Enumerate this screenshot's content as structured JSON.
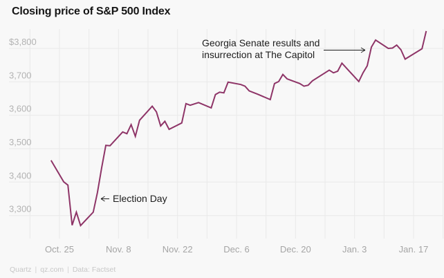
{
  "title": "Closing price of S&P 500 Index",
  "footer": {
    "brand": "Quartz",
    "site": "qz.com",
    "source": "Data: Factset",
    "separator": "|"
  },
  "annotations": {
    "election": {
      "label": "Election Day"
    },
    "georgia": {
      "line1": "Georgia Senate results and",
      "line2": "insurrection at The Capitol"
    }
  },
  "chart_data": {
    "type": "line",
    "title": "Closing price of S&P 500 Index",
    "line_color": "#8e3467",
    "grid": true,
    "legend_position": "none",
    "ylim": [
      3230,
      3860
    ],
    "x_range": [
      "2020-10-18",
      "2021-01-24"
    ],
    "y_axis": {
      "tick_labels": [
        "$3,800",
        "3,700",
        "3,600",
        "3,500",
        "3,400",
        "3,300"
      ],
      "tick_values": [
        3800,
        3700,
        3600,
        3500,
        3400,
        3300
      ]
    },
    "x_axis": {
      "tick_labels": [
        "Oct. 25",
        "Nov. 8",
        "Nov. 22",
        "Dec. 6",
        "Dec. 20",
        "Jan. 3",
        "Jan. 17"
      ],
      "tick_dates": [
        "2020-10-25",
        "2020-11-08",
        "2020-11-22",
        "2020-12-06",
        "2020-12-20",
        "2021-01-03",
        "2021-01-17"
      ],
      "minor_gridline_interval_days": 7
    },
    "series": [
      {
        "name": "S&P 500 closing price",
        "dates": [
          "2020-10-23",
          "2020-10-26",
          "2020-10-27",
          "2020-10-28",
          "2020-10-29",
          "2020-10-30",
          "2020-11-02",
          "2020-11-03",
          "2020-11-04",
          "2020-11-05",
          "2020-11-06",
          "2020-11-09",
          "2020-11-10",
          "2020-11-11",
          "2020-11-12",
          "2020-11-13",
          "2020-11-16",
          "2020-11-17",
          "2020-11-18",
          "2020-11-19",
          "2020-11-20",
          "2020-11-23",
          "2020-11-24",
          "2020-11-25",
          "2020-11-27",
          "2020-11-30",
          "2020-12-01",
          "2020-12-02",
          "2020-12-03",
          "2020-12-04",
          "2020-12-07",
          "2020-12-08",
          "2020-12-09",
          "2020-12-10",
          "2020-12-11",
          "2020-12-14",
          "2020-12-15",
          "2020-12-16",
          "2020-12-17",
          "2020-12-18",
          "2020-12-21",
          "2020-12-22",
          "2020-12-23",
          "2020-12-24",
          "2020-12-28",
          "2020-12-29",
          "2020-12-30",
          "2020-12-31",
          "2021-01-04",
          "2021-01-05",
          "2021-01-06",
          "2021-01-07",
          "2021-01-08",
          "2021-01-11",
          "2021-01-12",
          "2021-01-13",
          "2021-01-14",
          "2021-01-15",
          "2021-01-19",
          "2021-01-20"
        ],
        "values": [
          3465,
          3401,
          3391,
          3271,
          3310,
          3270,
          3310,
          3369,
          3443,
          3510,
          3509,
          3550,
          3545,
          3572,
          3537,
          3585,
          3627,
          3610,
          3568,
          3582,
          3558,
          3577,
          3635,
          3630,
          3638,
          3622,
          3662,
          3669,
          3667,
          3699,
          3692,
          3687,
          3673,
          3668,
          3663,
          3647,
          3695,
          3701,
          3722,
          3709,
          3695,
          3687,
          3690,
          3703,
          3735,
          3727,
          3732,
          3756,
          3701,
          3727,
          3748,
          3804,
          3825,
          3800,
          3801,
          3810,
          3796,
          3768,
          3799,
          3852
        ]
      }
    ]
  }
}
